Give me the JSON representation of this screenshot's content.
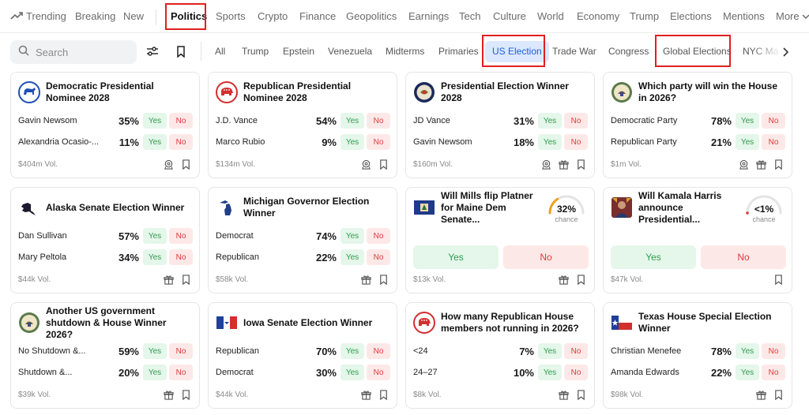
{
  "topnav": {
    "trending": "Trending",
    "items": [
      "Breaking",
      "New",
      "Politics",
      "Sports",
      "Crypto",
      "Finance",
      "Geopolitics",
      "Earnings",
      "Tech",
      "Culture",
      "World",
      "Economy",
      "Trump",
      "Elections",
      "Mentions"
    ],
    "more": "More"
  },
  "search": {
    "placeholder": "Search"
  },
  "subtabs": [
    "All",
    "Trump",
    "Epstein",
    "Venezuela",
    "Midterms",
    "Primaries",
    "US Election",
    "Trade War",
    "Congress",
    "Global Elections",
    "NYC Ma"
  ],
  "labels": {
    "yes": "Yes",
    "no": "No",
    "chance": "chance"
  },
  "colors": {
    "yes": "#2e9e4f",
    "no": "#e03a3a",
    "active_tab": "#1f5fd6",
    "highlight": "#e02020"
  },
  "cards": [
    {
      "title": "Democratic Presidential Nominee 2028",
      "logo": "democrat-donkey-icon",
      "outcomes": [
        {
          "name": "Gavin Newsom",
          "pct": "35%"
        },
        {
          "name": "Alexandria Ocasio-...",
          "pct": "11%"
        }
      ],
      "vol": "$404m Vol."
    },
    {
      "title": "Republican Presidential Nominee 2028",
      "logo": "republican-elephant-icon",
      "outcomes": [
        {
          "name": "J.D. Vance",
          "pct": "54%"
        },
        {
          "name": "Marco Rubio",
          "pct": "9%"
        }
      ],
      "vol": "$134m Vol."
    },
    {
      "title": "Presidential Election Winner 2028",
      "logo": "presidential-seal-icon",
      "outcomes": [
        {
          "name": "JD Vance",
          "pct": "31%"
        },
        {
          "name": "Gavin Newsom",
          "pct": "18%"
        }
      ],
      "vol": "$160m Vol."
    },
    {
      "title": "Which party will win the House in 2026?",
      "logo": "house-seal-icon",
      "outcomes": [
        {
          "name": "Democratic Party",
          "pct": "78%"
        },
        {
          "name": "Republican Party",
          "pct": "21%"
        }
      ],
      "vol": "$1m Vol."
    },
    {
      "title": "Alaska Senate Election Winner",
      "logo": "alaska-map-icon",
      "outcomes": [
        {
          "name": "Dan Sullivan",
          "pct": "57%"
        },
        {
          "name": "Mary Peltola",
          "pct": "34%"
        }
      ],
      "vol": "$44k Vol."
    },
    {
      "title": "Michigan Governor Election Winner",
      "logo": "michigan-map-icon",
      "outcomes": [
        {
          "name": "Democrat",
          "pct": "74%"
        },
        {
          "name": "Republican",
          "pct": "22%"
        }
      ],
      "vol": "$58k Vol."
    },
    {
      "title": "Will Mills flip Platner for Maine Dem Senate...",
      "logo": "maine-flag-icon",
      "chance": "32%",
      "chance_value": 0.32,
      "vol": "$13k Vol."
    },
    {
      "title": "Will Kamala Harris announce Presidential...",
      "logo": "kamala-harris-photo-icon",
      "chance": "<1%",
      "chance_value": 0.01,
      "vol": "$47k Vol."
    },
    {
      "title": "Another US government shutdown & House Winner 2026?",
      "logo": "house-seal-icon",
      "outcomes": [
        {
          "name": "No Shutdown &...",
          "pct": "59%"
        },
        {
          "name": "Shutdown &...",
          "pct": "20%"
        }
      ],
      "vol": "$39k Vol."
    },
    {
      "title": "Iowa Senate Election Winner",
      "logo": "iowa-flag-icon",
      "outcomes": [
        {
          "name": "Republican",
          "pct": "70%"
        },
        {
          "name": "Democrat",
          "pct": "30%"
        }
      ],
      "vol": "$44k Vol."
    },
    {
      "title": "How many Republican House members not running in 2026?",
      "logo": "republican-elephant-icon",
      "outcomes": [
        {
          "name": "<24",
          "pct": "7%"
        },
        {
          "name": "24–27",
          "pct": "10%"
        }
      ],
      "vol": "$8k Vol."
    },
    {
      "title": "Texas House Special Election Winner",
      "logo": "texas-flag-icon",
      "outcomes": [
        {
          "name": "Christian Menefee",
          "pct": "78%"
        },
        {
          "name": "Amanda Edwards",
          "pct": "22%"
        }
      ],
      "vol": "$98k Vol."
    }
  ]
}
